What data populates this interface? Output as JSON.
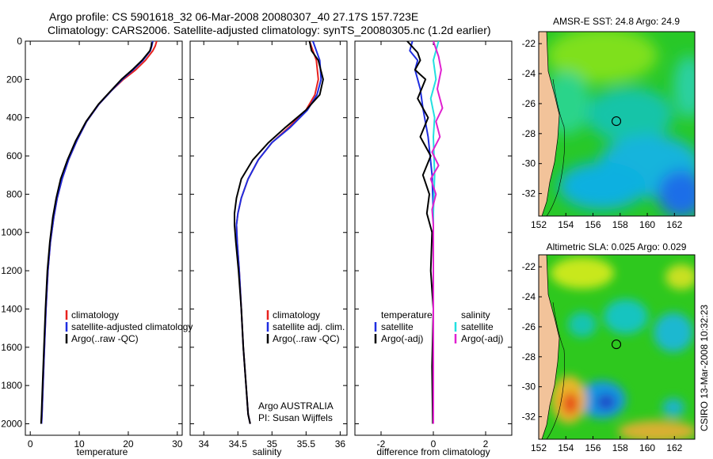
{
  "header": {
    "line1": "Argo profile: CS 5901618_32 06-Mar-2008 20080307_40 27.17S 157.723E",
    "line2": "Climatology: CARS2006. Satellite-adjusted climatology: synTS_20080305.nc (1.2d earlier)"
  },
  "footer": {
    "credit1": "Argo AUSTRALIA",
    "credit2": "PI: Susan Wijffels",
    "timestamp": "CSIRO 13-Mar-2008 10:32:23"
  },
  "colors": {
    "climatology": "#e8221e",
    "satellite": "#1f2ee0",
    "argo": "#000000",
    "temp_diff_clim": "#1f2ee0",
    "sal_diff_sat": "#22e0e0",
    "sal_diff_argo": "#e020d0",
    "land": "#f2c39a"
  },
  "chart_data": [
    {
      "type": "line",
      "xlabel": "temperature",
      "xlim": [
        -1,
        31
      ],
      "ylim": [
        2060,
        0
      ],
      "xticks": [
        0,
        10,
        20,
        30
      ],
      "yticks": [
        0,
        200,
        400,
        600,
        800,
        1000,
        1200,
        1400,
        1600,
        1800,
        2000
      ],
      "legend": [
        "climatology",
        "satellite-adjusted climatology",
        "Argo(..raw -QC)"
      ],
      "series": [
        {
          "name": "climatology",
          "x": [
            25.8,
            25.5,
            25.0,
            23.5,
            21.5,
            19.0,
            16.5,
            14.0,
            11.5,
            9.5,
            7.8,
            6.5,
            5.5,
            4.8,
            4.1,
            3.6,
            3.2,
            2.9,
            2.6,
            2.4,
            2.3
          ],
          "y": [
            0,
            25,
            50,
            100,
            150,
            200,
            260,
            330,
            420,
            520,
            620,
            720,
            820,
            920,
            1050,
            1200,
            1400,
            1600,
            1800,
            1950,
            2000
          ]
        },
        {
          "name": "satellite-adjusted climatology",
          "x": [
            25.0,
            24.8,
            24.5,
            23.0,
            21.0,
            18.8,
            16.5,
            14.0,
            11.5,
            9.5,
            7.8,
            6.5,
            5.5,
            4.8,
            4.1,
            3.6,
            3.2,
            2.9,
            2.6,
            2.4,
            2.3
          ],
          "y": [
            0,
            25,
            50,
            100,
            150,
            200,
            260,
            330,
            420,
            520,
            620,
            720,
            820,
            920,
            1050,
            1200,
            1400,
            1600,
            1800,
            1950,
            2000
          ]
        },
        {
          "name": "Argo(..raw -QC)",
          "x": [
            24.8,
            24.7,
            24.4,
            22.8,
            20.8,
            18.6,
            16.4,
            13.9,
            11.4,
            9.3,
            7.6,
            6.2,
            5.3,
            4.6,
            4.0,
            3.5,
            3.1,
            2.8,
            2.5,
            2.3,
            2.2
          ],
          "y": [
            5,
            25,
            50,
            100,
            150,
            200,
            260,
            330,
            420,
            520,
            620,
            720,
            820,
            920,
            1050,
            1200,
            1400,
            1600,
            1800,
            1950,
            2000
          ]
        }
      ]
    },
    {
      "type": "line",
      "xlabel": "salinity",
      "xlim": [
        33.8,
        36.1
      ],
      "ylim": [
        2060,
        0
      ],
      "xticks": [
        34,
        34.5,
        35,
        35.5,
        36
      ],
      "legend": [
        "climatology",
        "satellite adj. clim.",
        "Argo(..raw -QC)"
      ],
      "series": [
        {
          "name": "climatology",
          "x": [
            35.55,
            35.6,
            35.65,
            35.68,
            35.63,
            35.5,
            35.25,
            35.0,
            34.8,
            34.65,
            34.55,
            34.5,
            34.48,
            34.49,
            34.52,
            34.55,
            34.58,
            34.62,
            34.65,
            34.68
          ],
          "y": [
            0,
            50,
            100,
            200,
            280,
            360,
            450,
            530,
            620,
            720,
            820,
            900,
            960,
            1050,
            1200,
            1400,
            1600,
            1800,
            1950,
            2000
          ]
        },
        {
          "name": "satellite adj. clim.",
          "x": [
            35.6,
            35.65,
            35.7,
            35.72,
            35.66,
            35.52,
            35.27,
            35.0,
            34.8,
            34.65,
            34.55,
            34.5,
            34.48,
            34.49,
            34.52,
            34.55,
            34.58,
            34.62,
            34.65,
            34.68
          ],
          "y": [
            0,
            50,
            100,
            200,
            280,
            360,
            450,
            530,
            620,
            720,
            820,
            900,
            960,
            1050,
            1200,
            1400,
            1600,
            1800,
            1950,
            2000
          ]
        },
        {
          "name": "Argo(..raw -QC)",
          "x": [
            35.55,
            35.58,
            35.68,
            35.75,
            35.7,
            35.5,
            35.2,
            34.95,
            34.72,
            34.55,
            34.48,
            34.45,
            34.45,
            34.47,
            34.51,
            34.55,
            34.58,
            34.62,
            34.65,
            34.68
          ],
          "y": [
            0,
            50,
            100,
            200,
            280,
            360,
            450,
            530,
            620,
            720,
            820,
            900,
            960,
            1050,
            1200,
            1400,
            1600,
            1800,
            1950,
            2000
          ]
        }
      ]
    },
    {
      "type": "line",
      "xlabel": "difference from climatology",
      "xlim": [
        -3,
        3
      ],
      "ylim": [
        2060,
        0
      ],
      "xticks": [
        -2,
        0,
        2
      ],
      "legend_left_title": "temperature",
      "legend_left": [
        "satellite",
        "Argo(-adj)"
      ],
      "legend_right_title": "salinity",
      "legend_right": [
        "satellite",
        "Argo(-adj)"
      ],
      "series": [
        {
          "name": "temperature satellite",
          "x": [
            -0.8,
            -0.9,
            -0.6,
            -0.7,
            -0.5,
            -0.4,
            -0.2,
            -0.05,
            0.0,
            0.0,
            0.0,
            0.0
          ],
          "y": [
            0,
            50,
            100,
            150,
            250,
            350,
            500,
            700,
            900,
            1200,
            1600,
            2000
          ]
        },
        {
          "name": "temperature Argo(-adj)",
          "x": [
            -1.0,
            -0.6,
            -0.5,
            -0.7,
            -0.3,
            -0.6,
            -0.2,
            -0.5,
            -0.1,
            -0.4,
            -0.15,
            -0.25,
            -0.05,
            -0.1,
            0.0,
            -0.05,
            -0.02
          ],
          "y": [
            0,
            60,
            100,
            150,
            200,
            300,
            400,
            500,
            600,
            700,
            800,
            900,
            1000,
            1200,
            1400,
            1700,
            2000
          ]
        },
        {
          "name": "salinity satellite",
          "x": [
            0.2,
            0.1,
            0.0,
            0.1,
            -0.1,
            0.05,
            0.0,
            0.05,
            0.0,
            0.0,
            0.0
          ],
          "y": [
            0,
            50,
            100,
            200,
            300,
            400,
            500,
            700,
            900,
            1400,
            2000
          ]
        },
        {
          "name": "salinity Argo(-adj)",
          "x": [
            0.0,
            0.2,
            0.3,
            0.15,
            0.35,
            0.1,
            0.25,
            -0.05,
            0.2,
            -0.1,
            0.1,
            -0.05,
            0.0,
            0.0,
            0.0
          ],
          "y": [
            0,
            80,
            150,
            250,
            350,
            420,
            500,
            580,
            650,
            720,
            800,
            880,
            960,
            1200,
            2000
          ]
        }
      ]
    },
    {
      "type": "heatmap",
      "title": "AMSR-E SST: 24.8 Argo: 24.9",
      "xlim": [
        152,
        163.5
      ],
      "ylim": [
        -33.5,
        -21.2
      ],
      "xticks": [
        152,
        154,
        156,
        158,
        160,
        162
      ],
      "yticks": [
        -22,
        -24,
        -26,
        -28,
        -30,
        -32
      ],
      "argo_position": [
        157.723,
        -27.17
      ]
    },
    {
      "type": "heatmap",
      "title": "Altimetric SLA: 0.025 Argo: 0.029",
      "xlim": [
        152,
        163.5
      ],
      "ylim": [
        -33.5,
        -21.2
      ],
      "xticks": [
        152,
        154,
        156,
        158,
        160,
        162
      ],
      "yticks": [
        -22,
        -24,
        -26,
        -28,
        -30,
        -32
      ],
      "argo_position": [
        157.723,
        -27.17
      ]
    }
  ]
}
